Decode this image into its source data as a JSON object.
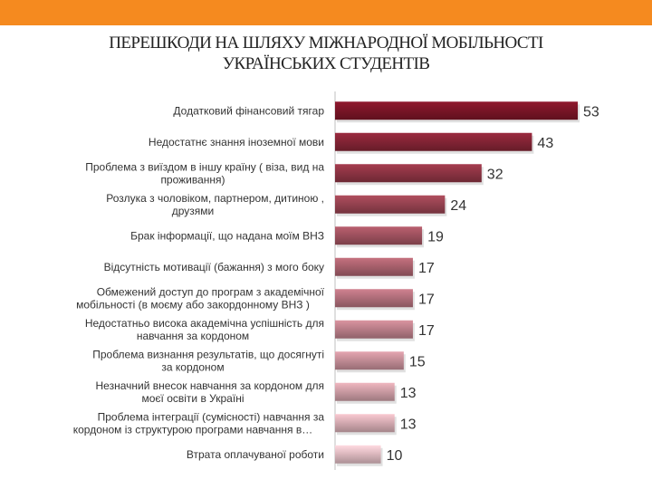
{
  "header": {
    "title_line1": "ПЕРЕШКОДИ НА ШЛЯХУ МІЖНАРОДНОЇ МОБІЛЬНОСТІ",
    "title_line2": "УКРАЇНСЬКИХ СТУДЕНТІВ"
  },
  "colors": {
    "top_bar": "#f58a1f",
    "bar_dark": "#7a1527",
    "bar_light": "#ddb9bf"
  },
  "chart_data": {
    "type": "bar",
    "orientation": "horizontal",
    "title": "ПЕРЕШКОДИ НА ШЛЯХУ МІЖНАРОДНОЇ МОБІЛЬНОСТІ УКРАЇНСЬКИХ СТУДЕНТІВ",
    "xlabel": "",
    "ylabel": "",
    "grid": false,
    "legend": "none",
    "xlim": [
      0,
      53
    ],
    "categories": [
      [
        "Додатковий фінансовий тягар"
      ],
      [
        "Недостатнє знання іноземної мови"
      ],
      [
        "Проблема з виїздом в іншу країну ( віза, вид на",
        "проживання)"
      ],
      [
        "Розлука з чоловіком, партнером, дитиною ,",
        "друзями"
      ],
      [
        "Брак інформації, що надана моїм ВНЗ"
      ],
      [
        "Відсутність мотивації (бажання) з мого боку"
      ],
      [
        "Обмежений доступ до програм з академічної",
        "мобільності (в моєму або закордонному ВНЗ )"
      ],
      [
        "Недостатньо висока академічна успішність для",
        "навчання за кордоном"
      ],
      [
        "Проблема визнання результатів, що досягнуті",
        "за кордоном"
      ],
      [
        "Незначний внесок навчання за кордоном для",
        "моєї освіти в Україні"
      ],
      [
        "Проблема інтеграції (сумісності) навчання за",
        "кордоном із структурою програми навчання в…"
      ],
      [
        "Втрата оплачуваної роботи"
      ]
    ],
    "values": [
      53,
      43,
      32,
      24,
      19,
      17,
      17,
      17,
      15,
      13,
      13,
      10
    ]
  }
}
